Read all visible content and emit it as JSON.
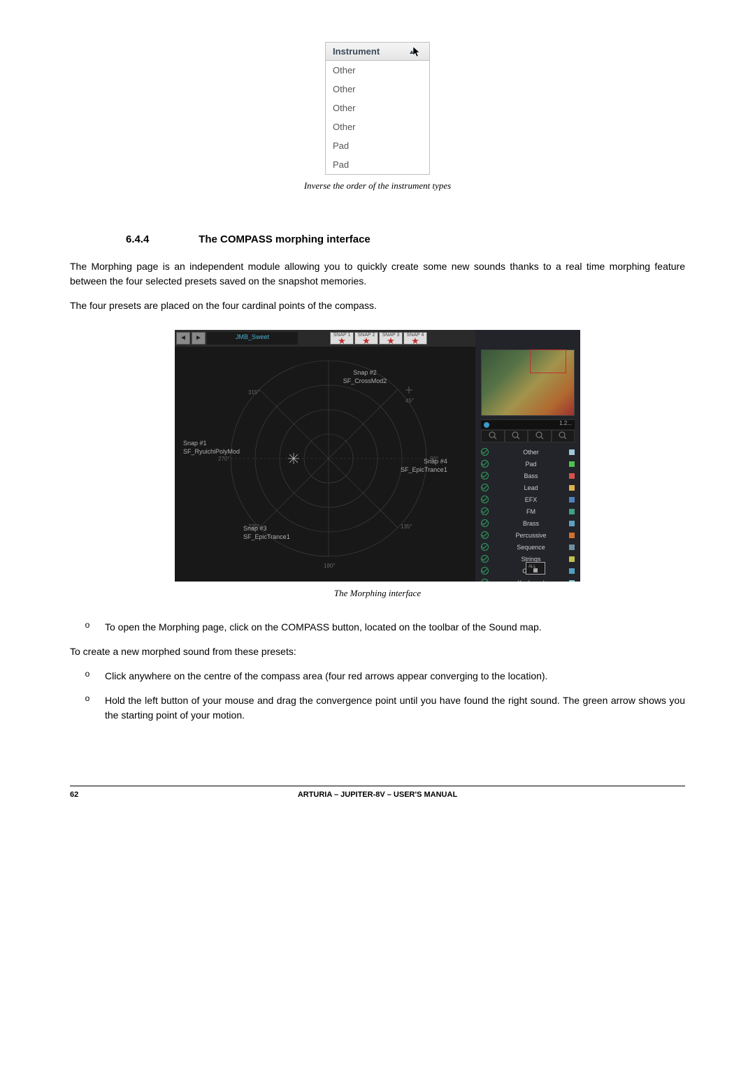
{
  "fig1": {
    "header": "Instrument",
    "rows": [
      "Other",
      "Other",
      "Other",
      "Other",
      "Pad",
      "Pad"
    ],
    "caption": "Inverse the order of the instrument types"
  },
  "section": {
    "number": "6.4.4",
    "title": "The COMPASS morphing interface"
  },
  "para1": "The Morphing page is an independent module allowing you to quickly create some new sounds thanks to a real time morphing feature between the four selected presets saved on the snapshot memories.",
  "para2": "The four presets are placed on the four cardinal points of the compass.",
  "morph": {
    "topbar": {
      "prev_label": "PREVIOUS",
      "next_label": "NEXT",
      "preset_name": "JMB_Sweet",
      "snaps": [
        "SNAP 1",
        "SNAP 2",
        "SNAP 3",
        "SNAP 4"
      ]
    },
    "labels": {
      "snap1_title": "Snap #1",
      "snap1_preset": "SF_RyuichiPolyMod",
      "snap2_title": "Snap #2",
      "snap2_preset": "SF_CrossMod2",
      "snap3_title": "Snap #3",
      "snap3_preset": "SF_EpicTrance1",
      "snap4_title": "Snap #4",
      "snap4_preset": "SF_EpicTrance1",
      "deg_315": "315°",
      "deg_45": "45°",
      "deg_270": "270°",
      "deg_90": "90°",
      "deg_225": "225°",
      "deg_135": "135°",
      "deg_180": "180°"
    },
    "slider_value": "1.2...",
    "filters": [
      {
        "label": "Other",
        "color": "#a0c8d8"
      },
      {
        "label": "Pad",
        "color": "#50c050"
      },
      {
        "label": "Bass",
        "color": "#d85050"
      },
      {
        "label": "Lead",
        "color": "#e0b050"
      },
      {
        "label": "EFX",
        "color": "#5080c0"
      },
      {
        "label": "FM",
        "color": "#40a080"
      },
      {
        "label": "Brass",
        "color": "#60a0c0"
      },
      {
        "label": "Percussive",
        "color": "#d07030"
      },
      {
        "label": "Sequence",
        "color": "#7090a0"
      },
      {
        "label": "Strings",
        "color": "#c0c050"
      },
      {
        "label": "Guitar",
        "color": "#50a0c0"
      },
      {
        "label": "Keyboard",
        "color": "#80c0d0"
      }
    ],
    "caption": "The Morphing interface"
  },
  "bullets": {
    "b1": "To open the Morphing page, click on the COMPASS button, located on the toolbar of the Sound map.",
    "intro": "To create a new morphed sound from these presets:",
    "b2": "Click anywhere on the centre of the compass area (four red arrows appear converging to the location).",
    "b3": "Hold the left button of your mouse and drag the convergence point until you have found the right sound. The green arrow shows you the starting point of your motion."
  },
  "footer": {
    "page": "62",
    "title": "ARTURIA – JUPITER-8V – USER'S MANUAL"
  }
}
